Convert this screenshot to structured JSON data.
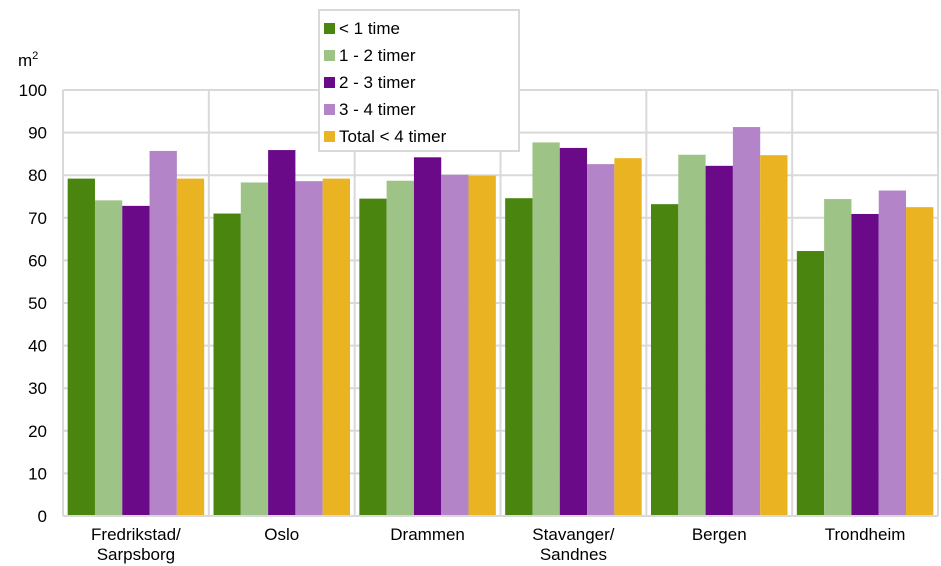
{
  "chart_data": {
    "type": "bar",
    "ylabel": "m",
    "ylabel_sup": "2",
    "ylim": [
      0,
      100
    ],
    "yticks": [
      0,
      10,
      20,
      30,
      40,
      50,
      60,
      70,
      80,
      90,
      100
    ],
    "grid": true,
    "legend_position": "top-center",
    "categories": [
      [
        "Fredrikstad/",
        "Sarpsborg"
      ],
      [
        "Oslo"
      ],
      [
        "Drammen"
      ],
      [
        "Stavanger/",
        "Sandnes"
      ],
      [
        "Bergen"
      ],
      [
        "Trondheim"
      ]
    ],
    "series": [
      {
        "name": "< 1 time",
        "color": "#4a8510",
        "values": [
          79.2,
          71.0,
          74.5,
          74.6,
          73.2,
          62.2
        ]
      },
      {
        "name": "1 - 2 timer",
        "color": "#9dc387",
        "values": [
          74.1,
          78.3,
          78.7,
          87.7,
          84.8,
          74.4
        ]
      },
      {
        "name": "2 - 3 timer",
        "color": "#6a0a89",
        "values": [
          72.8,
          85.9,
          84.2,
          86.4,
          82.2,
          70.9
        ]
      },
      {
        "name": "3 - 4 timer",
        "color": "#b384c8",
        "values": [
          85.7,
          78.6,
          80.1,
          82.6,
          91.3,
          76.4
        ]
      },
      {
        "name": "Total < 4 timer",
        "color": "#e9b322",
        "values": [
          79.2,
          79.2,
          79.9,
          84.0,
          84.7,
          72.5
        ]
      }
    ]
  }
}
